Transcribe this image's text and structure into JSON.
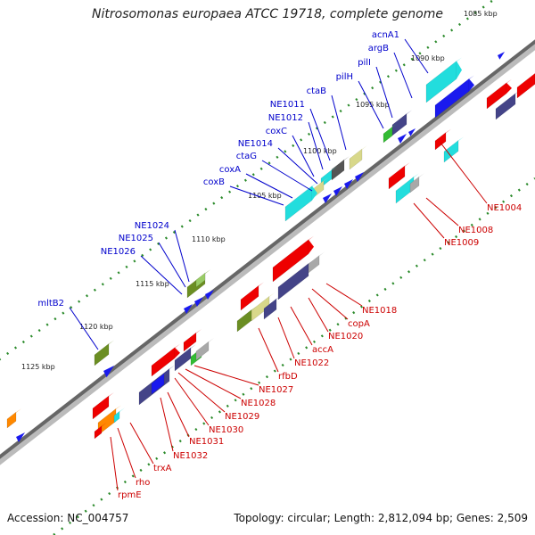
{
  "title": "Nitrosomonas europaea ATCC 19718, complete genome",
  "footer": {
    "accession": "Accession: NC_004757",
    "stats": "Topology: circular; Length: 2,812,094 bp; Genes: 2,509"
  },
  "colors": {
    "backbone": "#666666",
    "tick": "#2a8a2a",
    "label_top": "#0000cc",
    "label_bottom": "#cc0000",
    "red": "#ee0000",
    "blue": "#1a1aee",
    "cyan": "#22dddd",
    "navy": "#444488",
    "olive": "#6b8e23",
    "khaki": "#d8d88a",
    "gray": "#a8a8a8",
    "green": "#33bb33",
    "orange": "#ff8800"
  },
  "kbp_labels": [
    "1085 kbp",
    "1090 kbp",
    "1095 kbp",
    "1100 kbp",
    "1105 kbp",
    "1110 kbp",
    "1115 kbp",
    "1120 kbp",
    "1125 kbp"
  ],
  "top_genes": [
    "acnA1",
    "argB",
    "pilI",
    "pilH",
    "ctaB",
    "NE1011",
    "NE1012",
    "coxC",
    "NE1014",
    "ctaG",
    "coxA",
    "coxB",
    "NE1024",
    "NE1025",
    "NE1026",
    "mltB2"
  ],
  "bottom_genes": [
    "NE1004",
    "NE1008",
    "NE1009",
    "NE1018",
    "copA",
    "NE1020",
    "accA",
    "NE1022",
    "rfbD",
    "NE1027",
    "NE1028",
    "NE1029",
    "NE1030",
    "NE1031",
    "NE1032",
    "trxA",
    "rho",
    "rpmE"
  ]
}
